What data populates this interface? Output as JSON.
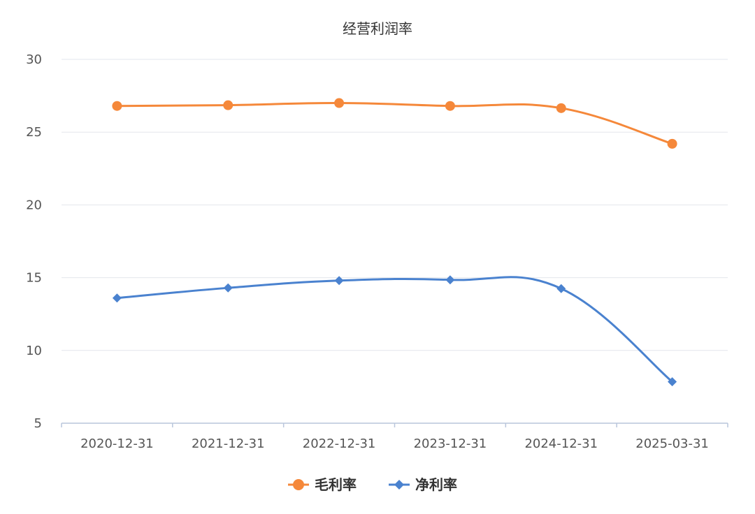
{
  "chart_data": {
    "type": "line",
    "title": "经营利润率",
    "xlabel": "",
    "ylabel": "",
    "categories": [
      "2020-12-31",
      "2021-12-31",
      "2022-12-31",
      "2023-12-31",
      "2024-12-31",
      "2025-03-31"
    ],
    "ylim": [
      5,
      30
    ],
    "yticks": [
      5,
      10,
      15,
      20,
      25,
      30
    ],
    "grid": true,
    "legend_position": "bottom",
    "smooth": true,
    "series": [
      {
        "name": "毛利率",
        "color": "#f5883a",
        "marker": "circle",
        "values": [
          26.8,
          26.85,
          27.0,
          26.8,
          26.65,
          24.2
        ]
      },
      {
        "name": "净利率",
        "color": "#4a82cf",
        "marker": "diamond",
        "values": [
          13.6,
          14.3,
          14.8,
          14.85,
          14.25,
          7.85
        ]
      }
    ]
  }
}
